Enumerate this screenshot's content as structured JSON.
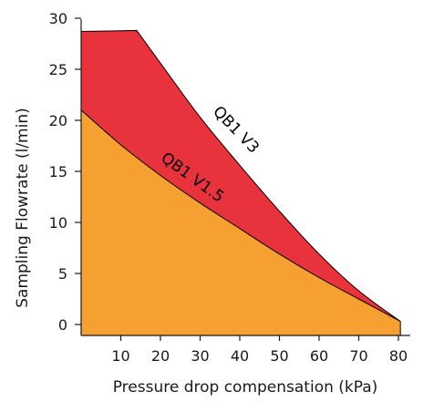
{
  "chart_data": {
    "type": "area",
    "xlabel": "Pressure drop compensation (kPa)",
    "ylabel": "Sampling Flowrate  (l/min)",
    "xlim": [
      0,
      82
    ],
    "ylim": [
      0,
      30
    ],
    "x_ticks": [
      "10",
      "20",
      "30",
      "40",
      "50",
      "60",
      "70",
      "80"
    ],
    "x_tick_values": [
      10,
      20,
      30,
      40,
      50,
      60,
      70,
      80
    ],
    "y_ticks": [
      "0",
      "5",
      "10",
      "15",
      "20",
      "25",
      "30"
    ],
    "y_tick_values": [
      0,
      5,
      10,
      15,
      20,
      25,
      30
    ],
    "grid": false,
    "legend": "none",
    "series": [
      {
        "name": "QB1 V3",
        "color": "#e8323c",
        "x": [
          0,
          14,
          20,
          30,
          40,
          50,
          60,
          70,
          80.5
        ],
        "y": [
          28.7,
          28.8,
          25.6,
          20.3,
          15.6,
          11.1,
          6.9,
          3.3,
          0.3
        ]
      },
      {
        "name": "QB1 V1.5",
        "color": "#f5a030",
        "x": [
          0,
          10,
          20,
          30,
          40,
          50,
          60,
          70,
          80.5
        ],
        "y": [
          21.0,
          17.6,
          14.6,
          11.9,
          9.4,
          6.9,
          4.6,
          2.5,
          0.3
        ]
      }
    ],
    "annotations": [
      {
        "text": "QB1 V3",
        "series": 0
      },
      {
        "text": "QB1 V1.5",
        "series": 1
      }
    ]
  }
}
